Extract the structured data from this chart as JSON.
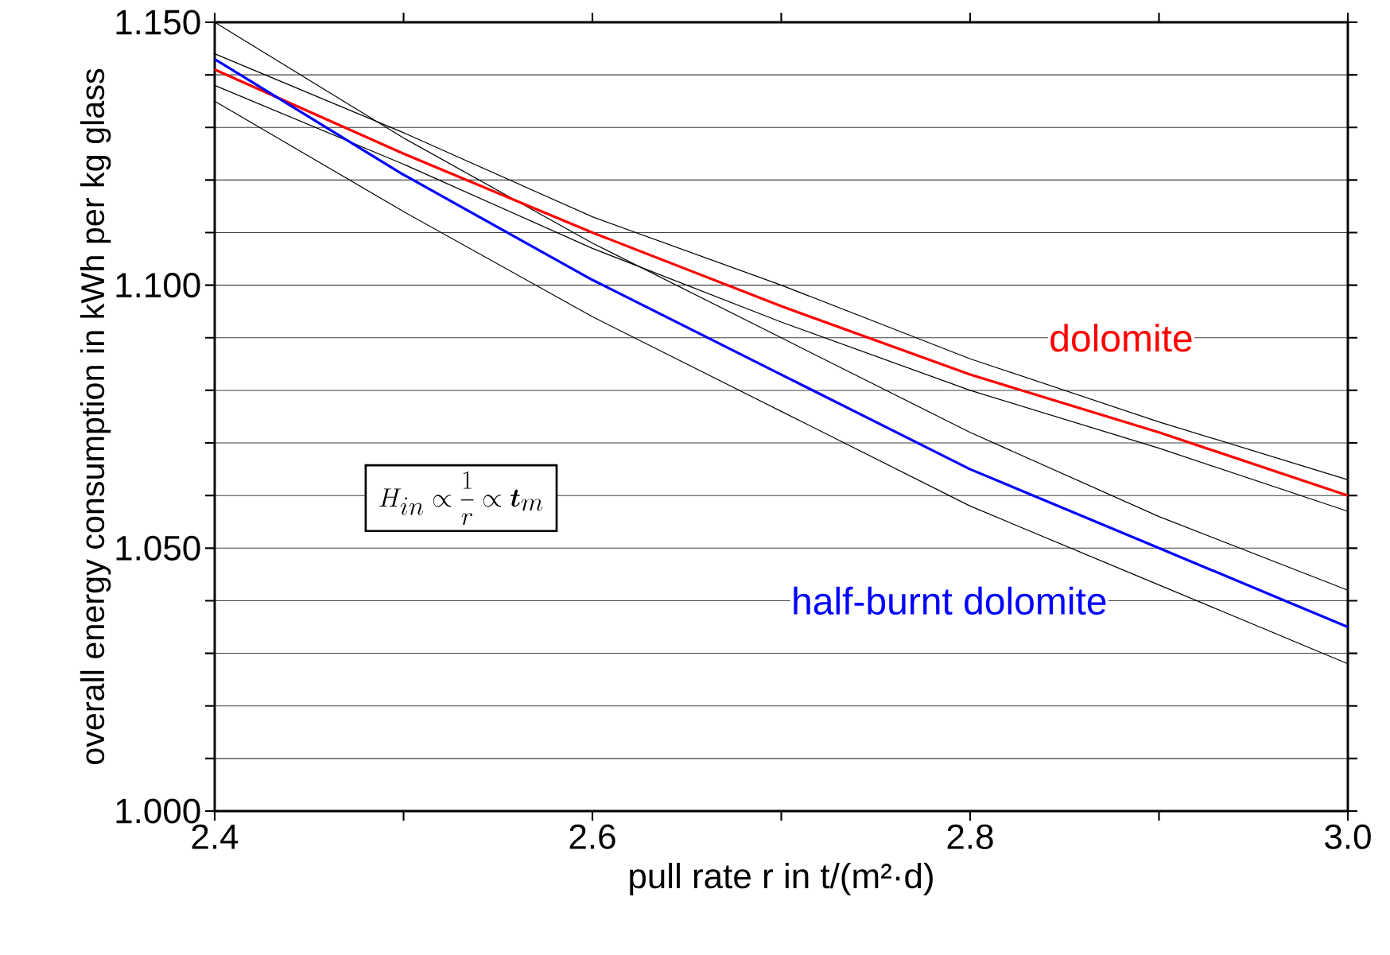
{
  "chart_data": {
    "type": "line",
    "xlabel": "pull rate r in t/(m²·d)",
    "ylabel": "overall energy consumption in kWh per kg glass",
    "x": [
      2.4,
      2.5,
      2.6,
      2.7,
      2.8,
      2.9,
      3.0
    ],
    "series": [
      {
        "color": "#000000",
        "values": [
          1.15,
          1.128,
          1.108,
          1.09,
          1.072,
          1.056,
          1.042
        ]
      },
      {
        "color": "#000000",
        "values": [
          1.144,
          1.129,
          1.113,
          1.1,
          1.086,
          1.074,
          1.063
        ]
      },
      {
        "color": "#000000",
        "values": [
          1.138,
          1.123,
          1.107,
          1.093,
          1.08,
          1.069,
          1.057
        ]
      },
      {
        "color": "#000000",
        "values": [
          1.135,
          1.114,
          1.094,
          1.076,
          1.058,
          1.043,
          1.028
        ]
      },
      {
        "name": "dolomite",
        "color": "#ff0000",
        "values": [
          1.141,
          1.125,
          1.11,
          1.096,
          1.083,
          1.072,
          1.06
        ]
      },
      {
        "name": "half-burnt dolomite",
        "color": "#0000ff",
        "values": [
          1.143,
          1.121,
          1.101,
          1.083,
          1.065,
          1.05,
          1.035
        ]
      }
    ],
    "xlim": [
      2.4,
      3.0
    ],
    "xticks": [
      2.4,
      {
        "value": 2.5,
        "label": null
      },
      2.6,
      {
        "value": 2.7,
        "label": null
      },
      2.8,
      {
        "value": 2.9,
        "label": null
      },
      {
        "value": 3.0,
        "label": "3.0"
      }
    ],
    "ylim": [
      1.0,
      1.15
    ],
    "yticks": [
      {
        "value": 1.0,
        "label": "1.000"
      },
      {
        "value": 1.01,
        "label": null
      },
      {
        "value": 1.02,
        "label": null
      },
      {
        "value": 1.03,
        "label": null
      },
      {
        "value": 1.04,
        "label": null
      },
      {
        "value": 1.05,
        "label": "1.050"
      },
      {
        "value": 1.06,
        "label": null
      },
      {
        "value": 1.07,
        "label": null
      },
      {
        "value": 1.08,
        "label": null
      },
      {
        "value": 1.09,
        "label": null
      },
      {
        "value": 1.1,
        "label": "1.100"
      },
      {
        "value": 1.11,
        "label": null
      },
      {
        "value": 1.12,
        "label": null
      },
      {
        "value": 1.13,
        "label": null
      },
      {
        "value": 1.14,
        "label": null
      },
      {
        "value": 1.15,
        "label": "1.150"
      }
    ],
    "grid": "y",
    "annotations": [
      "H_{in} \\propto \\frac{1}{r} \\propto \\boldsymbol{t}_{m}"
    ]
  }
}
